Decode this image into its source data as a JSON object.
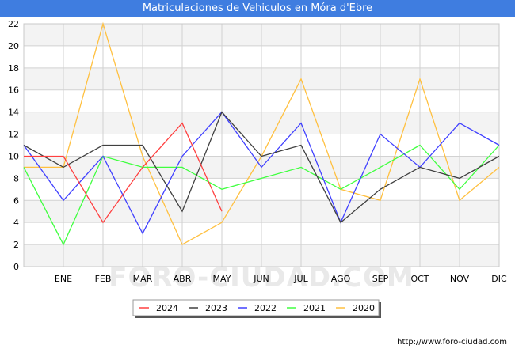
{
  "title": "Matriculaciones de Vehiculos en Móra d'Ebre",
  "footer_url": "http://www.foro-ciudad.com",
  "watermark": "FORO-CIUDAD.COM",
  "chart_data": {
    "type": "line",
    "title": "Matriculaciones de Vehiculos en Móra d'Ebre",
    "xlabel": "",
    "ylabel": "",
    "categories": [
      "",
      "ENE",
      "FEB",
      "MAR",
      "ABR",
      "MAY",
      "JUN",
      "JUL",
      "AGO",
      "SEP",
      "OCT",
      "NOV",
      "DIC"
    ],
    "ylim": [
      0,
      22
    ],
    "yticks": [
      0,
      2,
      4,
      6,
      8,
      10,
      12,
      14,
      16,
      18,
      20,
      22
    ],
    "grid": true,
    "legend_position": "bottom-center",
    "series": [
      {
        "name": "2024",
        "color": "#ff4040",
        "values": [
          10,
          10,
          4,
          9,
          13,
          5,
          null,
          null,
          null,
          null,
          null,
          null,
          null
        ]
      },
      {
        "name": "2023",
        "color": "#404040",
        "values": [
          11,
          9,
          11,
          11,
          5,
          14,
          10,
          11,
          4,
          7,
          9,
          8,
          10
        ]
      },
      {
        "name": "2022",
        "color": "#4040ff",
        "values": [
          11,
          6,
          10,
          3,
          10,
          14,
          9,
          13,
          4,
          12,
          9,
          13,
          11
        ]
      },
      {
        "name": "2021",
        "color": "#40ff40",
        "values": [
          9,
          2,
          10,
          9,
          9,
          7,
          8,
          9,
          7,
          9,
          11,
          7,
          11
        ]
      },
      {
        "name": "2020",
        "color": "#ffc040",
        "values": [
          9,
          9,
          22,
          10,
          2,
          4,
          10,
          17,
          7,
          6,
          17,
          6,
          9
        ]
      }
    ]
  }
}
